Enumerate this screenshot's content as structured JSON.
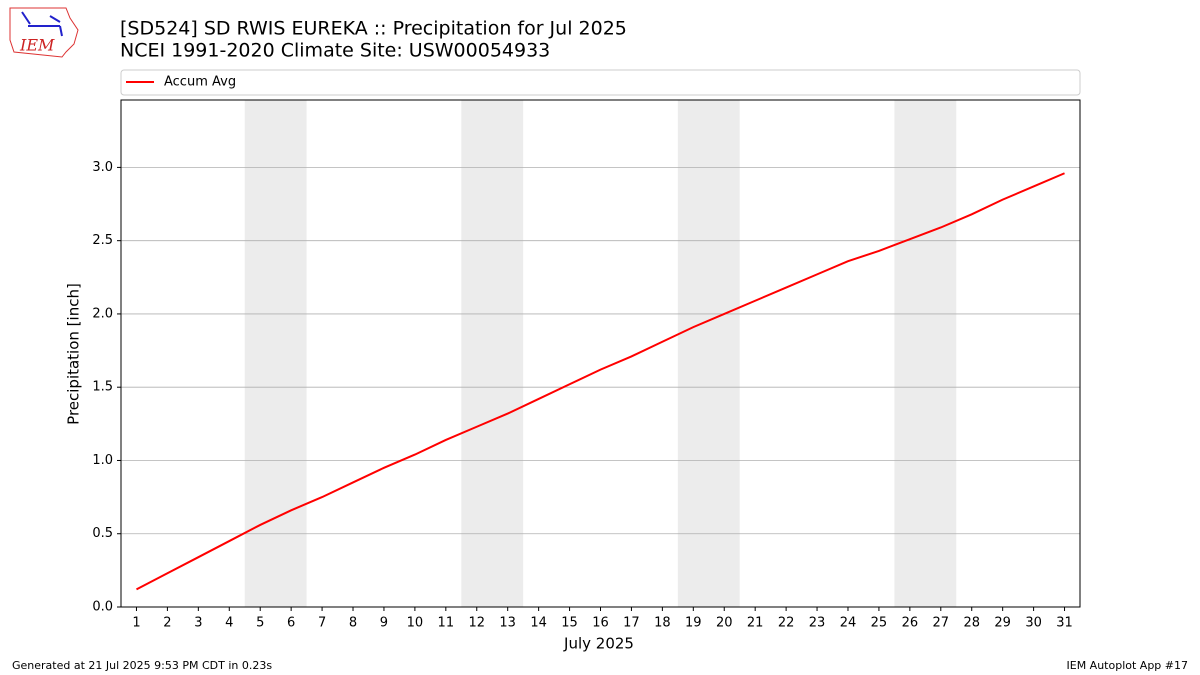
{
  "logo_text": "IEM",
  "footer_left": "Generated at 21 Jul 2025 9:53 PM CDT in 0.23s",
  "footer_right": "IEM Autoplot App #17",
  "chart_data": {
    "type": "line",
    "title": "[SD524] SD RWIS EUREKA :: Precipitation for Jul 2025",
    "subtitle": "NCEI 1991-2020 Climate Site: USW00054933",
    "x_label": "July 2025",
    "y_label": "Precipitation [inch]",
    "x": [
      1,
      2,
      3,
      4,
      5,
      6,
      7,
      8,
      9,
      10,
      11,
      12,
      13,
      14,
      15,
      16,
      17,
      18,
      19,
      20,
      21,
      22,
      23,
      24,
      25,
      26,
      27,
      28,
      29,
      30,
      31
    ],
    "series": [
      {
        "name": "Accum Avg",
        "color": "#ff0000",
        "values": [
          0.12,
          0.23,
          0.34,
          0.45,
          0.56,
          0.66,
          0.75,
          0.85,
          0.95,
          1.04,
          1.14,
          1.23,
          1.32,
          1.42,
          1.52,
          1.62,
          1.71,
          1.81,
          1.91,
          2.0,
          2.09,
          2.18,
          2.27,
          2.36,
          2.43,
          2.51,
          2.59,
          2.68,
          2.78,
          2.87,
          2.96
        ]
      }
    ],
    "xlim": [
      0.5,
      31.5
    ],
    "xticks": [
      1,
      2,
      3,
      4,
      5,
      6,
      7,
      8,
      9,
      10,
      11,
      12,
      13,
      14,
      15,
      16,
      17,
      18,
      19,
      20,
      21,
      22,
      23,
      24,
      25,
      26,
      27,
      28,
      29,
      30,
      31
    ],
    "ylim": [
      0,
      3.46
    ],
    "yticks": [
      {
        "value": 0,
        "label": "0.0"
      },
      0.5,
      {
        "value": 1,
        "label": "1.0"
      },
      1.5,
      {
        "value": 2,
        "label": "2.0"
      },
      2.5,
      {
        "value": 3,
        "label": "3.0"
      }
    ],
    "shaded_x_ranges": [
      [
        4.5,
        6.5
      ],
      [
        11.5,
        13.5
      ],
      [
        18.5,
        20.5
      ],
      [
        25.5,
        27.5
      ]
    ],
    "shade_color": "#ececec",
    "grid": "y",
    "legend": "top"
  }
}
